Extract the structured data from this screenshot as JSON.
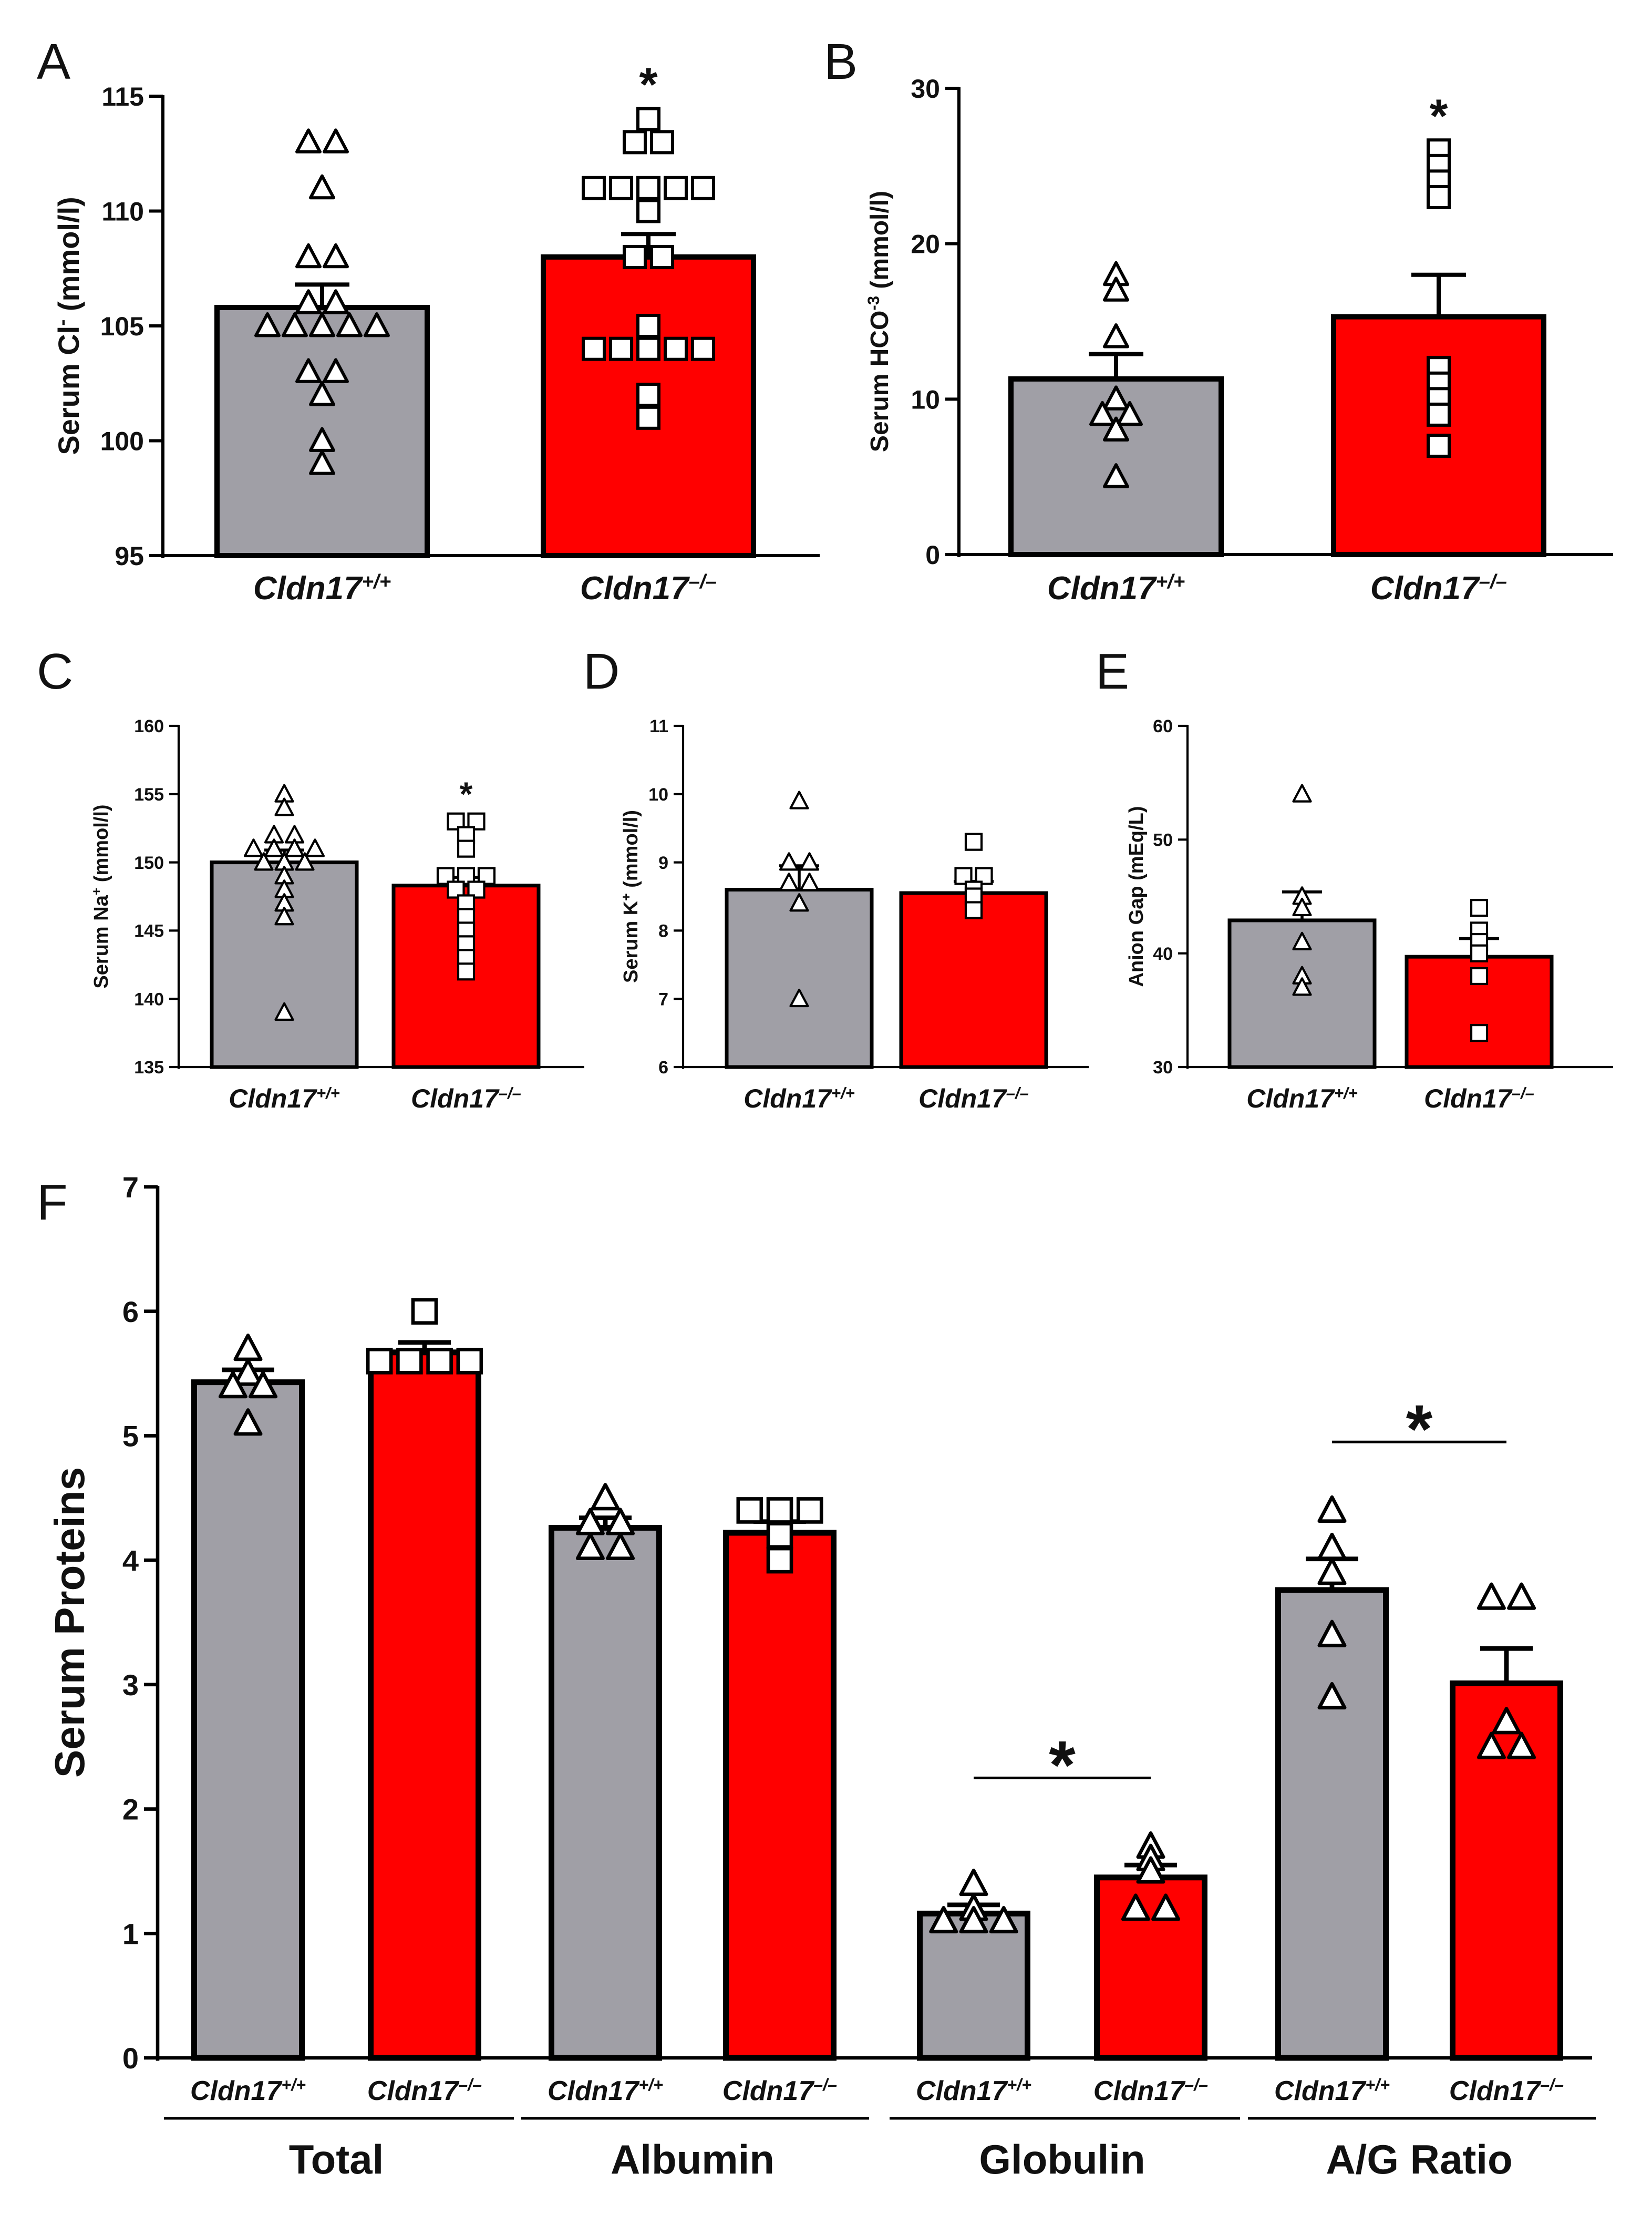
{
  "figure": {
    "colors": {
      "wildtype": "#a09fa6",
      "knockout": "#ff0000",
      "axis": "#000000"
    }
  },
  "chart_data": [
    {
      "panel": "A",
      "type": "bar",
      "ylabel_main": "Serum Cl",
      "ylabel_sup": "-",
      "ylabel_tail": " (mmol/l)",
      "ylim": [
        95,
        115
      ],
      "yticks": [
        95,
        100,
        105,
        110,
        115
      ],
      "categories": [
        {
          "base": "Cldn17",
          "sup": "+/+"
        },
        {
          "base": "Cldn17",
          "sup": "–/–"
        }
      ],
      "means": [
        105.8,
        108.0
      ],
      "sem": [
        1.0,
        1.0
      ],
      "points": [
        [
          113,
          113,
          111,
          108,
          108,
          106,
          106,
          105,
          105,
          105,
          105,
          105,
          103,
          103,
          102,
          100,
          99
        ],
        [
          114,
          113,
          113,
          111,
          111,
          111,
          111,
          111,
          110,
          108,
          108,
          105,
          104,
          104,
          104,
          104,
          104,
          102,
          101
        ]
      ],
      "markers": [
        "triangle",
        "square"
      ],
      "significance": "*"
    },
    {
      "panel": "B",
      "type": "bar",
      "ylabel_main": "Serum HCO",
      "ylabel_sup": "-3",
      "ylabel_tail": " (mmol/l)",
      "ylim": [
        0,
        30
      ],
      "yticks": [
        0,
        10,
        20,
        30
      ],
      "categories": [
        {
          "base": "Cldn17",
          "sup": "+/+"
        },
        {
          "base": "Cldn17",
          "sup": "–/–"
        }
      ],
      "means": [
        11.3,
        15.3
      ],
      "sem": [
        1.6,
        2.7
      ],
      "points": [
        [
          18,
          17,
          14,
          10,
          9,
          9,
          8,
          5
        ],
        [
          26,
          25,
          24,
          23,
          12,
          11,
          10,
          9,
          7
        ]
      ],
      "markers": [
        "triangle",
        "square"
      ],
      "significance": "*"
    },
    {
      "panel": "C",
      "type": "bar",
      "ylabel_main": "Serum Na",
      "ylabel_sup": "+",
      "ylabel_tail": " (mmol/l)",
      "ylim": [
        135,
        160
      ],
      "yticks": [
        135,
        140,
        145,
        150,
        155,
        160
      ],
      "categories": [
        {
          "base": "Cldn17",
          "sup": "+/+"
        },
        {
          "base": "Cldn17",
          "sup": "–/–"
        }
      ],
      "means": [
        150.0,
        148.3
      ],
      "sem": [
        0.9,
        0.6
      ],
      "points": [
        [
          155,
          154,
          152,
          152,
          151,
          151,
          151,
          151,
          150,
          150,
          150,
          149,
          148,
          147,
          146,
          139
        ],
        [
          153,
          153,
          152,
          151,
          149,
          149,
          149,
          148,
          148,
          147,
          146,
          145,
          144,
          143,
          142
        ]
      ],
      "markers": [
        "triangle",
        "square"
      ],
      "significance": "*"
    },
    {
      "panel": "D",
      "type": "bar",
      "ylabel_main": "Serum K",
      "ylabel_sup": "+",
      "ylabel_tail": " (mmol/l)",
      "ylim": [
        6,
        11
      ],
      "yticks": [
        6,
        7,
        8,
        9,
        10,
        11
      ],
      "categories": [
        {
          "base": "Cldn17",
          "sup": "+/+"
        },
        {
          "base": "Cldn17",
          "sup": "–/–"
        }
      ],
      "means": [
        8.6,
        8.55
      ],
      "sem": [
        0.35,
        0.17
      ],
      "points": [
        [
          9.9,
          9.0,
          9.0,
          8.7,
          8.7,
          8.4,
          7.0
        ],
        [
          9.3,
          8.8,
          8.8,
          8.6,
          8.5,
          8.3
        ]
      ],
      "markers": [
        "triangle",
        "square"
      ],
      "significance": ""
    },
    {
      "panel": "E",
      "type": "bar",
      "ylabel_main": "Anion Gap (mEq/L)",
      "ylabel_sup": "",
      "ylabel_tail": "",
      "ylim": [
        30,
        60
      ],
      "yticks": [
        30,
        40,
        50,
        60
      ],
      "categories": [
        {
          "base": "Cldn17",
          "sup": "+/+"
        },
        {
          "base": "Cldn17",
          "sup": "–/–"
        }
      ],
      "means": [
        42.9,
        39.7
      ],
      "sem": [
        2.5,
        1.6
      ],
      "points": [
        [
          54,
          45,
          44,
          41,
          38,
          37
        ],
        [
          44,
          42,
          41,
          40,
          38,
          33
        ]
      ],
      "markers": [
        "triangle",
        "square"
      ],
      "significance": ""
    },
    {
      "panel": "F",
      "type": "bar",
      "ylabel_main": "Serum Proteins",
      "ylabel_sup": "",
      "ylabel_tail": "",
      "ylim": [
        0,
        7
      ],
      "yticks": [
        0,
        1,
        2,
        3,
        4,
        5,
        6,
        7
      ],
      "groups": [
        "Total",
        "Albumin",
        "Globulin",
        "A/G Ratio"
      ],
      "categories": [
        {
          "base": "Cldn17",
          "sup": "+/+"
        },
        {
          "base": "Cldn17",
          "sup": "–/–"
        },
        {
          "base": "Cldn17",
          "sup": "+/+"
        },
        {
          "base": "Cldn17",
          "sup": "–/–"
        },
        {
          "base": "Cldn17",
          "sup": "+/+"
        },
        {
          "base": "Cldn17",
          "sup": "–/–"
        },
        {
          "base": "Cldn17",
          "sup": "+/+"
        },
        {
          "base": "Cldn17",
          "sup": "–/–"
        }
      ],
      "means": [
        5.43,
        5.67,
        4.26,
        4.22,
        1.16,
        1.45,
        3.76,
        3.01
      ],
      "sem": [
        0.1,
        0.08,
        0.08,
        0.09,
        0.07,
        0.1,
        0.25,
        0.28
      ],
      "points": [
        [
          5.7,
          5.5,
          5.4,
          5.4,
          5.1
        ],
        [
          6.0,
          5.6,
          5.6,
          5.6,
          5.6
        ],
        [
          4.5,
          4.3,
          4.3,
          4.1,
          4.1
        ],
        [
          4.4,
          4.4,
          4.4,
          4.2,
          4.0
        ],
        [
          1.4,
          1.2,
          1.1,
          1.1,
          1.1
        ],
        [
          1.7,
          1.6,
          1.5,
          1.2,
          1.2
        ],
        [
          4.4,
          4.1,
          3.9,
          3.4,
          2.9
        ],
        [
          3.7,
          3.7,
          2.7,
          2.5,
          2.5
        ]
      ],
      "markers": [
        "triangle",
        "square",
        "triangle",
        "square",
        "triangle",
        "triangle",
        "triangle",
        "triangle"
      ],
      "significance_pairs": [
        {
          "between": [
            4,
            5
          ],
          "label": "*"
        },
        {
          "between": [
            6,
            7
          ],
          "label": "*"
        }
      ]
    }
  ]
}
